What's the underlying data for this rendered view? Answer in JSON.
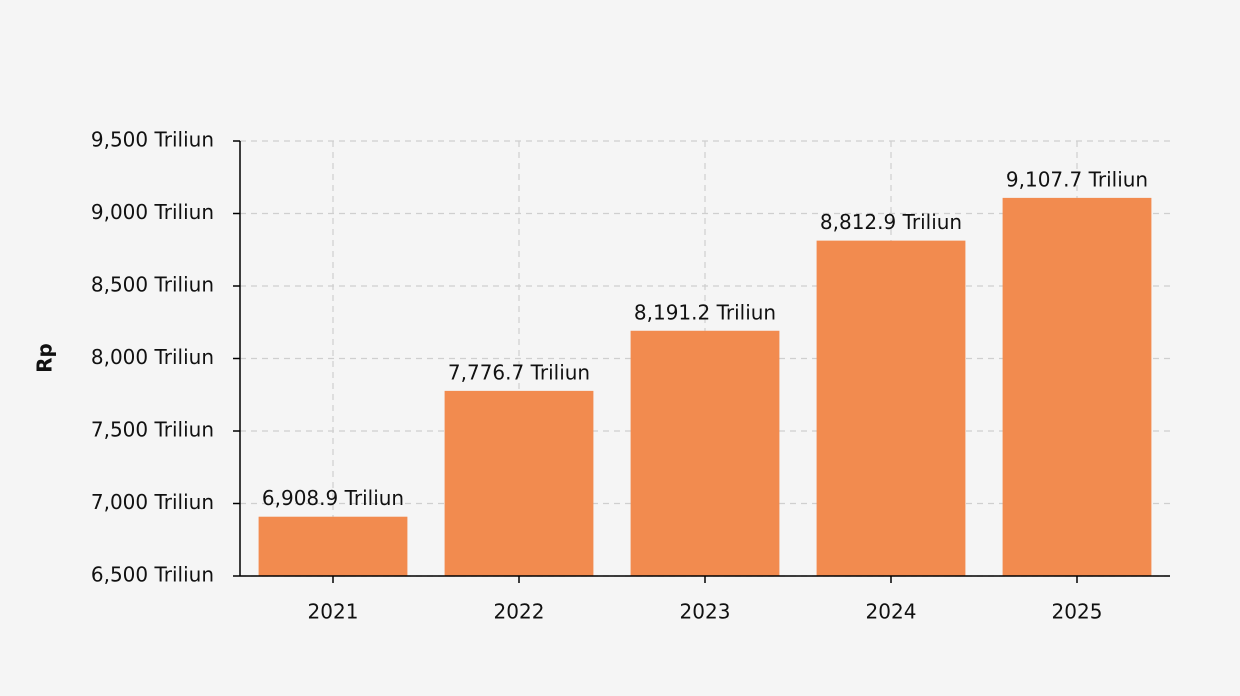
{
  "chart_data": {
    "type": "bar",
    "y_label": "Rp",
    "categories": [
      "2021",
      "2022",
      "2023",
      "2024",
      "2025"
    ],
    "values": [
      6908.9,
      7776.7,
      8191.2,
      8812.9,
      9107.7
    ],
    "value_labels": [
      "6,908.9 Triliun",
      "7,776.7 Triliun",
      "8,191.2 Triliun",
      "8,812.9 Triliun",
      "9,107.7 Triliun"
    ],
    "color": "#f28b4f",
    "ylim": [
      6500,
      9500
    ],
    "yticks": [
      {
        "value": 6500,
        "label": "6,500 Triliun"
      },
      {
        "value": 7000,
        "label": "7,000 Triliun"
      },
      {
        "value": 7500,
        "label": "7,500 Triliun"
      },
      {
        "value": 8000,
        "label": "8,000 Triliun"
      },
      {
        "value": 8500,
        "label": "8,500 Triliun"
      },
      {
        "value": 9000,
        "label": "9,000 Triliun"
      },
      {
        "value": 9500,
        "label": "9,500 Triliun"
      }
    ],
    "grid": true
  }
}
